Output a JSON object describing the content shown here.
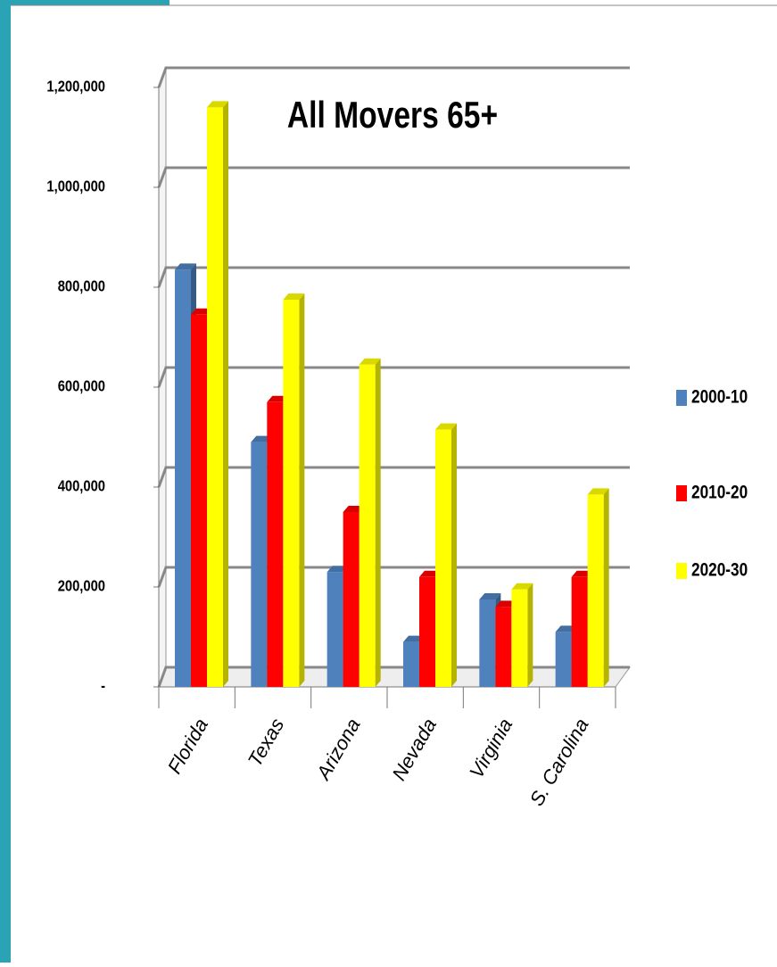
{
  "chart_data": {
    "type": "bar",
    "title": "All Movers 65+",
    "categories": [
      "Florida",
      "Texas",
      "Arizona",
      "Nevada",
      "Virginia",
      "S. Carolina"
    ],
    "series": [
      {
        "name": "2000-10",
        "color": "#4f81bd",
        "values": [
          835000,
          490000,
          230000,
          90000,
          175000,
          110000
        ]
      },
      {
        "name": "2010-20",
        "color": "#ff0000",
        "values": [
          745000,
          570000,
          350000,
          220000,
          160000,
          220000
        ]
      },
      {
        "name": "2020-30",
        "color": "#ffff00",
        "values": [
          1160000,
          775000,
          645000,
          515000,
          195000,
          385000
        ]
      }
    ],
    "ylim": [
      0,
      1200000
    ],
    "yticks": [
      {
        "value": 0,
        "label": "-"
      },
      {
        "value": 200000,
        "label": "200,000"
      },
      {
        "value": 400000,
        "label": "400,000"
      },
      {
        "value": 600000,
        "label": "600,000"
      },
      {
        "value": 800000,
        "label": "800,000"
      },
      {
        "value": 1000000,
        "label": "1,000,000"
      },
      {
        "value": 1200000,
        "label": "1,200,000"
      }
    ],
    "grid": true,
    "legend": "right"
  }
}
